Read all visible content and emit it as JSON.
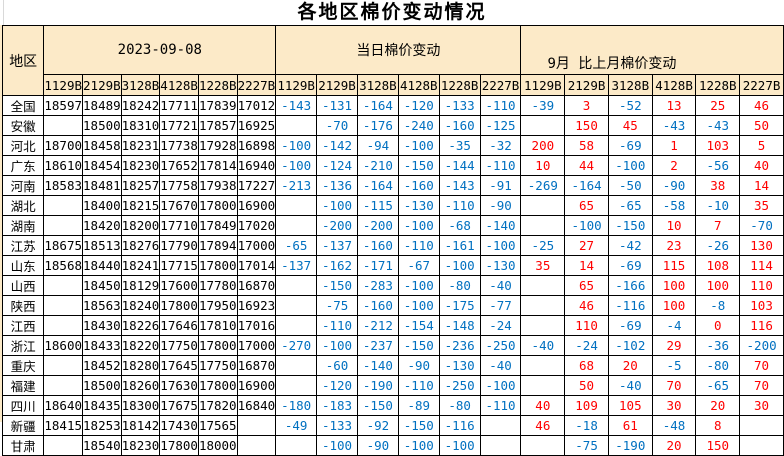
{
  "title": "各地区棉价变动情况",
  "colors": {
    "positive_change": "#FF0000",
    "negative_change": "#0070C0",
    "header_background": "#FCEAC8",
    "grid_border": "#000000"
  },
  "table": {
    "region_header": "地区",
    "groups": [
      {
        "label": "2023-09-08",
        "sub": [
          "1129B",
          "2129B",
          "3128B",
          "4128B",
          "1228B",
          "2227B"
        ]
      },
      {
        "label": "当日棉价变动",
        "sub": [
          "1129B",
          "2129B",
          "3128B",
          "4128B",
          "1228B",
          "2227B"
        ]
      },
      {
        "label": "9月 比上月棉价变动",
        "sub": [
          "1129B",
          "2129B",
          "3128B",
          "4128B",
          "1228B",
          "2227B"
        ]
      }
    ],
    "rows": [
      {
        "region": "全国",
        "prices": [
          "18597",
          "18489",
          "18242",
          "17711",
          "17839",
          "17012"
        ],
        "daily": [
          "-143",
          "-131",
          "-164",
          "-120",
          "-133",
          "-110"
        ],
        "monthly": [
          "-39",
          "3",
          "-52",
          "13",
          "25",
          "46"
        ]
      },
      {
        "region": "安徽",
        "prices": [
          "",
          "18500",
          "18310",
          "17721",
          "17857",
          "16925"
        ],
        "daily": [
          "",
          "-70",
          "-176",
          "-240",
          "-160",
          "-125"
        ],
        "monthly": [
          "",
          "150",
          "45",
          "-43",
          "-43",
          "50"
        ]
      },
      {
        "region": "河北",
        "prices": [
          "18700",
          "18458",
          "18231",
          "17738",
          "17928",
          "16898"
        ],
        "daily": [
          "-100",
          "-142",
          "-94",
          "-100",
          "-35",
          "-32"
        ],
        "monthly": [
          "200",
          "58",
          "-69",
          "1",
          "103",
          "5"
        ]
      },
      {
        "region": "广东",
        "prices": [
          "18610",
          "18454",
          "18230",
          "17652",
          "17814",
          "16940"
        ],
        "daily": [
          "-100",
          "-124",
          "-210",
          "-150",
          "-144",
          "-110"
        ],
        "monthly": [
          "10",
          "44",
          "-100",
          "2",
          "-56",
          "40"
        ]
      },
      {
        "region": "河南",
        "prices": [
          "18583",
          "18481",
          "18257",
          "17758",
          "17938",
          "17227"
        ],
        "daily": [
          "-213",
          "-136",
          "-164",
          "-160",
          "-143",
          "-91"
        ],
        "monthly": [
          "-269",
          "-164",
          "-50",
          "-90",
          "38",
          "14"
        ]
      },
      {
        "region": "湖北",
        "prices": [
          "",
          "18400",
          "18215",
          "17670",
          "17800",
          "16900"
        ],
        "daily": [
          "",
          "-100",
          "-115",
          "-130",
          "-110",
          "-90"
        ],
        "monthly": [
          "",
          "65",
          "-65",
          "-58",
          "-10",
          "35"
        ]
      },
      {
        "region": "湖南",
        "prices": [
          "",
          "18420",
          "18200",
          "17710",
          "17849",
          "17020"
        ],
        "daily": [
          "",
          "-200",
          "-200",
          "-100",
          "-68",
          "-140"
        ],
        "monthly": [
          "",
          "-100",
          "-150",
          "10",
          "7",
          "-70"
        ]
      },
      {
        "region": "江苏",
        "prices": [
          "18675",
          "18513",
          "18276",
          "17790",
          "17894",
          "17000"
        ],
        "daily": [
          "-65",
          "-137",
          "-160",
          "-110",
          "-161",
          "-100"
        ],
        "monthly": [
          "-25",
          "27",
          "-42",
          "23",
          "-26",
          "130"
        ]
      },
      {
        "region": "山东",
        "prices": [
          "18568",
          "18440",
          "18241",
          "17715",
          "17800",
          "17014"
        ],
        "daily": [
          "-137",
          "-162",
          "-171",
          "-67",
          "-100",
          "-130"
        ],
        "monthly": [
          "35",
          "14",
          "-69",
          "115",
          "108",
          "114"
        ]
      },
      {
        "region": "山西",
        "prices": [
          "",
          "18450",
          "18129",
          "17600",
          "17780",
          "16870"
        ],
        "daily": [
          "",
          "-150",
          "-283",
          "-100",
          "-80",
          "-40"
        ],
        "monthly": [
          "",
          "65",
          "-166",
          "100",
          "100",
          "110"
        ]
      },
      {
        "region": "陕西",
        "prices": [
          "",
          "18563",
          "18240",
          "17800",
          "17950",
          "16923"
        ],
        "daily": [
          "",
          "-75",
          "-160",
          "-100",
          "-175",
          "-77"
        ],
        "monthly": [
          "",
          "46",
          "-116",
          "100",
          "-8",
          "103"
        ]
      },
      {
        "region": "江西",
        "prices": [
          "",
          "18430",
          "18226",
          "17646",
          "17810",
          "17016"
        ],
        "daily": [
          "",
          "-110",
          "-212",
          "-154",
          "-148",
          "-24"
        ],
        "monthly": [
          "",
          "110",
          "-69",
          "-4",
          "0",
          "116"
        ]
      },
      {
        "region": "浙江",
        "prices": [
          "18600",
          "18433",
          "18220",
          "17750",
          "17800",
          "17000"
        ],
        "daily": [
          "-270",
          "-100",
          "-237",
          "-150",
          "-236",
          "-250"
        ],
        "monthly": [
          "-40",
          "-24",
          "-102",
          "29",
          "-36",
          "-200"
        ]
      },
      {
        "region": "重庆",
        "prices": [
          "",
          "18452",
          "18280",
          "17645",
          "17750",
          "16870"
        ],
        "daily": [
          "",
          "-60",
          "-140",
          "-90",
          "-130",
          "-40"
        ],
        "monthly": [
          "",
          "68",
          "20",
          "-5",
          "-80",
          "70"
        ]
      },
      {
        "region": "福建",
        "prices": [
          "",
          "18500",
          "18260",
          "17630",
          "17800",
          "16900"
        ],
        "daily": [
          "",
          "-120",
          "-190",
          "-110",
          "-250",
          "-100"
        ],
        "monthly": [
          "",
          "50",
          "-40",
          "70",
          "-65",
          "70"
        ]
      },
      {
        "region": "四川",
        "prices": [
          "18640",
          "18435",
          "18300",
          "17675",
          "17820",
          "16840"
        ],
        "daily": [
          "-180",
          "-183",
          "-150",
          "-89",
          "-80",
          "-110"
        ],
        "monthly": [
          "40",
          "109",
          "105",
          "30",
          "20",
          "30"
        ]
      },
      {
        "region": "新疆",
        "prices": [
          "18415",
          "18253",
          "18142",
          "17430",
          "17565",
          ""
        ],
        "daily": [
          "-49",
          "-133",
          "-92",
          "-150",
          "-116",
          ""
        ],
        "monthly": [
          "46",
          "-18",
          "61",
          "-48",
          "8",
          ""
        ]
      },
      {
        "region": "甘肃",
        "prices": [
          "",
          "18540",
          "18230",
          "17800",
          "18000",
          ""
        ],
        "daily": [
          "",
          "-100",
          "-90",
          "-100",
          "-100",
          ""
        ],
        "monthly": [
          "",
          "-75",
          "-190",
          "20",
          "150",
          ""
        ]
      }
    ]
  }
}
